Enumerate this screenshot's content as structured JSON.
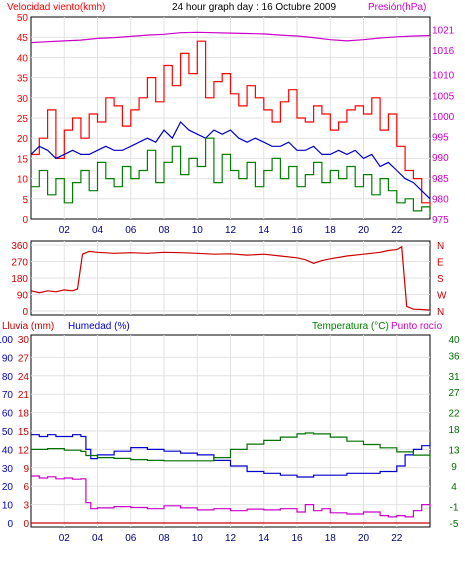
{
  "chart_data": [
    {
      "type": "line",
      "title": "24 hour graph day : 16 Octubre 2009",
      "left_axis_label": "Velocidad viento(kmh)",
      "right_axis_label": "Presión(hPa)",
      "x_ticks": [
        "02",
        "04",
        "06",
        "08",
        "10",
        "12",
        "14",
        "16",
        "18",
        "20",
        "22"
      ],
      "x_tick_hours": [
        2,
        4,
        6,
        8,
        10,
        12,
        14,
        16,
        18,
        20,
        22
      ],
      "x_range": [
        0,
        24
      ],
      "left_ylim": [
        0,
        50
      ],
      "left_ticks": [
        0,
        5,
        10,
        15,
        20,
        25,
        30,
        35,
        40,
        45,
        50
      ],
      "right_ylim": [
        975,
        1024
      ],
      "right_ticks": [
        975,
        980,
        985,
        990,
        995,
        1000,
        1005,
        1010,
        1016,
        1021
      ],
      "grid": true,
      "series": [
        {
          "color": "#ff0000",
          "axis": "left",
          "style": "step",
          "x": [
            0,
            0.5,
            1,
            1.5,
            2,
            2.5,
            3,
            3.5,
            4,
            4.5,
            5,
            5.5,
            6,
            6.5,
            7,
            7.5,
            8,
            8.5,
            9,
            9.5,
            10,
            10.5,
            11,
            11.5,
            12,
            12.5,
            13,
            13.5,
            14,
            14.5,
            15,
            15.5,
            16,
            16.5,
            17,
            17.5,
            18,
            18.5,
            19,
            19.5,
            20,
            20.5,
            21,
            21.5,
            22,
            22.5,
            23,
            23.5,
            24
          ],
          "values": [
            16,
            20,
            27,
            15,
            22,
            25,
            20,
            26,
            24,
            30,
            28,
            23,
            27,
            30,
            35,
            29,
            38,
            33,
            41,
            36,
            44,
            30,
            34,
            36,
            31,
            28,
            33,
            30,
            27,
            24,
            29,
            32,
            25,
            24,
            28,
            26,
            22,
            24,
            27,
            28,
            26,
            30,
            22,
            26,
            18,
            12,
            10,
            4,
            2
          ]
        },
        {
          "color": "#0000cc",
          "axis": "left",
          "style": "line",
          "x": [
            0,
            0.5,
            1,
            1.5,
            2,
            2.5,
            3,
            3.5,
            4,
            4.5,
            5,
            5.5,
            6,
            6.5,
            7,
            7.5,
            8,
            8.5,
            9,
            9.5,
            10,
            10.5,
            11,
            11.5,
            12,
            12.5,
            13,
            13.5,
            14,
            14.5,
            15,
            15.5,
            16,
            16.5,
            17,
            17.5,
            18,
            18.5,
            19,
            19.5,
            20,
            20.5,
            21,
            21.5,
            22,
            22.5,
            23,
            23.5,
            24
          ],
          "values": [
            16,
            18,
            17,
            15,
            16,
            17,
            16,
            16,
            17,
            18,
            17,
            17,
            18,
            19,
            20,
            19,
            22,
            20,
            24,
            22,
            21,
            20,
            22,
            21,
            22,
            20,
            19,
            20,
            19,
            18,
            18,
            19,
            17,
            17,
            18,
            16,
            16,
            17,
            16,
            17,
            15,
            16,
            13,
            14,
            12,
            10,
            9,
            7,
            5
          ]
        },
        {
          "color": "#008000",
          "axis": "left",
          "style": "step",
          "x": [
            0,
            0.5,
            1,
            1.5,
            2,
            2.5,
            3,
            3.5,
            4,
            4.5,
            5,
            5.5,
            6,
            6.5,
            7,
            7.5,
            8,
            8.5,
            9,
            9.5,
            10,
            10.5,
            11,
            11.5,
            12,
            12.5,
            13,
            13.5,
            14,
            14.5,
            15,
            15.5,
            16,
            16.5,
            17,
            17.5,
            18,
            18.5,
            19,
            19.5,
            20,
            20.5,
            21,
            21.5,
            22,
            22.5,
            23,
            23.5,
            24
          ],
          "values": [
            8,
            12,
            6,
            10,
            4,
            9,
            12,
            7,
            14,
            10,
            8,
            13,
            10,
            12,
            17,
            9,
            14,
            18,
            11,
            15,
            13,
            20,
            9,
            16,
            12,
            10,
            14,
            8,
            12,
            15,
            10,
            13,
            8,
            11,
            14,
            9,
            12,
            10,
            13,
            8,
            11,
            6,
            10,
            7,
            4,
            5,
            2,
            3,
            1
          ]
        },
        {
          "color": "#cc00cc",
          "axis": "right",
          "style": "line",
          "x": [
            0,
            1,
            2,
            3,
            4,
            5,
            6,
            7,
            8,
            9,
            10,
            11,
            12,
            13,
            14,
            15,
            16,
            17,
            18,
            19,
            20,
            21,
            22,
            23,
            24
          ],
          "values": [
            1017.8,
            1018,
            1018.2,
            1018.4,
            1018.8,
            1019,
            1019.3,
            1019.6,
            1019.8,
            1020.2,
            1020.3,
            1020.2,
            1020.1,
            1020,
            1019.9,
            1019.6,
            1019.4,
            1019,
            1018.5,
            1018.2,
            1018.5,
            1018.9,
            1019.2,
            1019.4,
            1019.5
          ]
        }
      ]
    },
    {
      "type": "line",
      "title": "",
      "left_ylim": [
        0,
        360
      ],
      "left_ticks": [
        0,
        90,
        180,
        270,
        360
      ],
      "right_tick_labels": [
        "N",
        "W",
        "S",
        "E",
        "N"
      ],
      "x_range": [
        0,
        24
      ],
      "grid": true,
      "series": [
        {
          "color": "#cc0000",
          "axis": "left",
          "style": "line",
          "x": [
            0,
            0.5,
            1,
            1.5,
            2,
            2.5,
            2.8,
            3.1,
            3.5,
            4,
            5,
            6,
            7,
            8,
            9,
            10,
            11,
            12,
            13,
            14,
            15,
            16,
            16.5,
            17,
            17.5,
            18,
            19,
            20,
            21,
            21.5,
            22,
            22.3,
            22.6,
            23,
            23.5,
            24
          ],
          "values": [
            110,
            100,
            110,
            105,
            115,
            110,
            120,
            310,
            325,
            320,
            315,
            318,
            315,
            320,
            318,
            315,
            310,
            312,
            305,
            310,
            300,
            290,
            280,
            260,
            275,
            285,
            300,
            310,
            320,
            330,
            335,
            350,
            25,
            10,
            8,
            5
          ]
        }
      ]
    },
    {
      "type": "line",
      "title": "",
      "left_axis_label_1": "Lluvia (mm)",
      "left_axis_label_2": "Humedad (%)",
      "right_axis_label_1": "Temperatura (°C)",
      "right_axis_label_2": "Punto rocío",
      "x_ticks": [
        "02",
        "04",
        "06",
        "08",
        "10",
        "12",
        "14",
        "16",
        "18",
        "20",
        "22"
      ],
      "x_tick_hours": [
        2,
        4,
        6,
        8,
        10,
        12,
        14,
        16,
        18,
        20,
        22
      ],
      "x_range": [
        0,
        24
      ],
      "rain_ylim": [
        0,
        30
      ],
      "rain_ticks": [
        0,
        3,
        6,
        9,
        12,
        15,
        18,
        21,
        24,
        27,
        30
      ],
      "humidity_ylim": [
        0,
        100
      ],
      "humidity_ticks": [
        0,
        10,
        20,
        30,
        40,
        50,
        60,
        70,
        80,
        90,
        100
      ],
      "temp_ylim": [
        -5,
        40
      ],
      "temp_ticks": [
        -5,
        -1,
        4,
        9,
        13,
        18,
        22,
        27,
        31,
        36,
        40
      ],
      "grid": true,
      "series": [
        {
          "color": "#cc0000",
          "axis": "rain",
          "style": "line",
          "x": [
            0,
            24
          ],
          "values": [
            0,
            0
          ]
        },
        {
          "color": "#0000cc",
          "axis": "humidity",
          "style": "step",
          "x": [
            0,
            0.5,
            1,
            1.5,
            2,
            2.5,
            3,
            3.3,
            3.6,
            4,
            5,
            6,
            7,
            8,
            9,
            10,
            11,
            12,
            13,
            14,
            15,
            16,
            17,
            18,
            19,
            20,
            21,
            21.5,
            22,
            22.5,
            23,
            23.5,
            24
          ],
          "values": [
            48,
            47,
            48,
            47,
            47,
            48,
            47,
            40,
            35,
            37,
            39,
            41,
            40,
            39,
            38,
            37,
            34,
            31,
            28,
            27,
            26,
            25,
            26,
            26,
            27,
            27,
            28,
            28,
            31,
            37,
            40,
            42,
            44
          ]
        },
        {
          "color": "#007000",
          "axis": "temp",
          "style": "step",
          "x": [
            0,
            1,
            2,
            3,
            3.3,
            4,
            5,
            6,
            7,
            8,
            9,
            10,
            11,
            12,
            13,
            14,
            15,
            16,
            16.5,
            17,
            18,
            19,
            20,
            21,
            22,
            23,
            24
          ],
          "values": [
            13,
            13.2,
            12.8,
            12.5,
            11.5,
            11,
            10.8,
            10.5,
            10.3,
            10.2,
            10.2,
            10.2,
            11,
            13,
            14.3,
            15.2,
            16,
            16.8,
            17,
            16.8,
            16,
            15,
            14.2,
            13.4,
            12.4,
            11.6,
            10.8
          ]
        },
        {
          "color": "#cc00cc",
          "axis": "temp",
          "style": "step",
          "x": [
            0,
            0.5,
            1,
            1.5,
            2,
            2.5,
            3,
            3.3,
            3.6,
            4,
            5,
            6,
            7,
            8,
            9,
            10,
            11,
            12,
            13,
            14,
            15,
            16,
            16.5,
            17,
            17.5,
            18,
            19,
            20,
            21,
            21.5,
            22,
            22.5,
            23,
            23.5,
            24
          ],
          "values": [
            6.5,
            6,
            6.3,
            5.8,
            6,
            5.7,
            5.8,
            0,
            -1.5,
            -1.3,
            -1,
            -1.2,
            -1.5,
            -0.8,
            -1.3,
            -1.8,
            -1.5,
            -2,
            -1.6,
            -1.8,
            -1.5,
            -2.3,
            -0.5,
            -2,
            -1.5,
            -2.5,
            -2.8,
            -2.3,
            -3.2,
            -3.5,
            -3.2,
            -3.5,
            -2,
            -0.5,
            -1
          ]
        }
      ]
    }
  ]
}
